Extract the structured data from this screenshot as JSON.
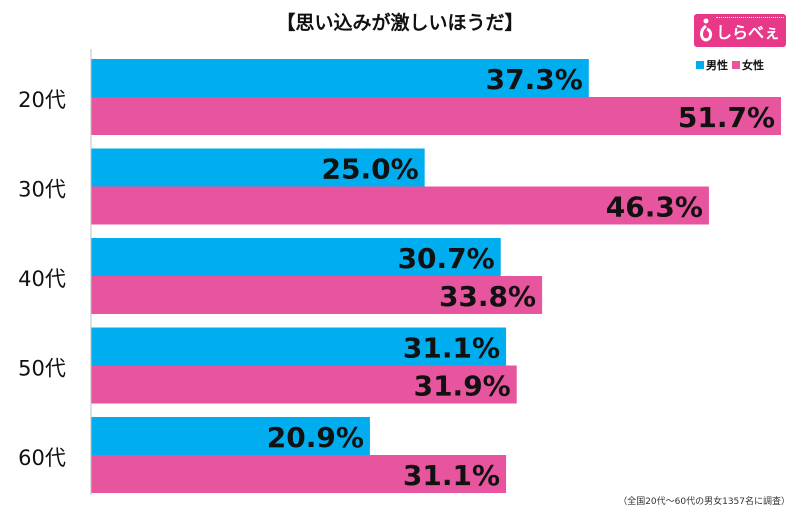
{
  "chart_data": {
    "type": "bar",
    "orientation": "horizontal",
    "title": "【思い込みが激しいほうだ】",
    "categories": [
      "20代",
      "30代",
      "40代",
      "50代",
      "60代"
    ],
    "series": [
      {
        "name": "男性",
        "color": "#00aeef",
        "values": [
          37.3,
          25.0,
          30.7,
          31.1,
          20.9
        ],
        "labels": [
          "37.3%",
          "25.0%",
          "30.7%",
          "31.1%",
          "20.9%"
        ]
      },
      {
        "name": "女性",
        "color": "#e8559f",
        "values": [
          51.7,
          46.3,
          33.8,
          31.9,
          31.1
        ],
        "labels": [
          "51.7%",
          "46.3%",
          "33.8%",
          "31.9%",
          "31.1%"
        ]
      }
    ],
    "xlim": [
      0,
      51.7
    ],
    "legend": "top-right",
    "grid": false
  },
  "logo": {
    "text": "しらべぇ",
    "color": "#e8388a"
  },
  "footnote": "（全国20代～60代の男女1357名に調査）"
}
